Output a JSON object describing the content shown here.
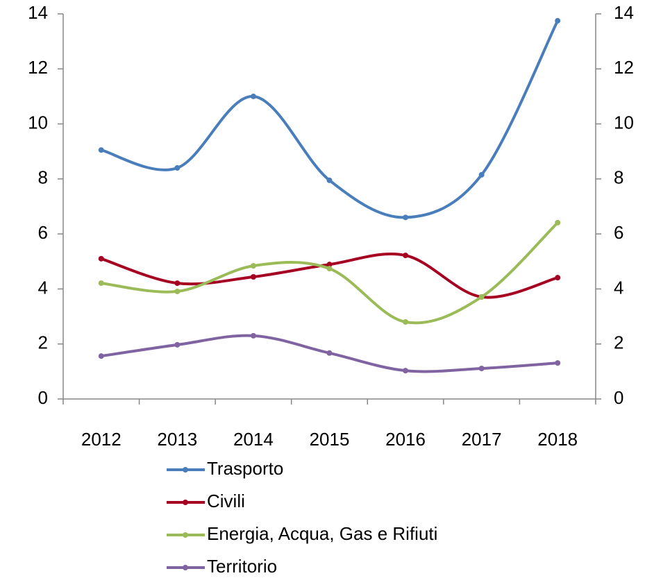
{
  "chart_data": {
    "type": "line",
    "categories": [
      "2012",
      "2013",
      "2014",
      "2015",
      "2016",
      "2017",
      "2018"
    ],
    "series": [
      {
        "name": "Trasporto",
        "color": "#4a7ebb",
        "values": [
          9.05,
          8.4,
          11.0,
          7.95,
          6.6,
          8.15,
          13.75
        ]
      },
      {
        "name": "Civili",
        "color": "#a50021",
        "values": [
          5.1,
          4.21,
          4.44,
          4.89,
          5.22,
          3.71,
          4.41
        ]
      },
      {
        "name": "Energia, Acqua, Gas e Rifiuti",
        "color": "#9bbb59",
        "values": [
          4.21,
          3.91,
          4.84,
          4.74,
          2.8,
          3.71,
          6.41
        ]
      },
      {
        "name": "Territorio",
        "color": "#8064a2",
        "values": [
          1.56,
          1.97,
          2.3,
          1.67,
          1.03,
          1.11,
          1.31
        ]
      }
    ],
    "ylim": [
      0,
      14
    ],
    "yticks": [
      0,
      2,
      4,
      6,
      8,
      10,
      12,
      14
    ],
    "y2lim": [
      0,
      14
    ],
    "y2ticks": [
      0,
      2,
      4,
      6,
      8,
      10,
      12,
      14
    ],
    "smooth": true,
    "legend": "bottom"
  }
}
